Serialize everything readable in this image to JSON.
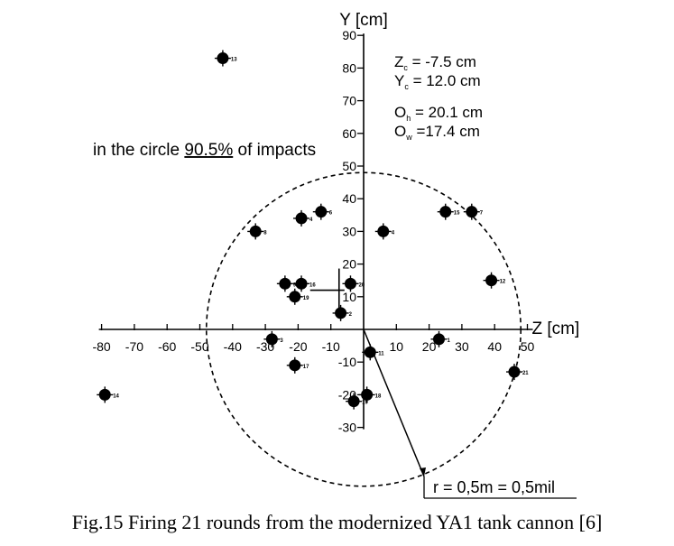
{
  "chart_data": {
    "type": "scatter",
    "y_axis_title": "Y [cm]",
    "x_axis_title": "Z [cm]",
    "x_ticks": [
      -80,
      -70,
      -60,
      -50,
      -40,
      -30,
      -20,
      -10,
      10,
      20,
      30,
      40,
      50
    ],
    "y_ticks": [
      90,
      80,
      70,
      60,
      50,
      40,
      30,
      20,
      10,
      -10,
      -20,
      -30
    ],
    "xlim": [
      -80,
      50
    ],
    "ylim": [
      -30,
      90
    ],
    "circle_label": "in the circle 90.5% of impacts",
    "circle_label_parts": {
      "before": "in the circle ",
      "underlined": "90.5%",
      "after": " of impacts"
    },
    "circle": {
      "center": [
        0,
        0
      ],
      "radius_cm": 48
    },
    "stats": {
      "zc": {
        "var": "Z",
        "sub": "c",
        "text": " = -7.5 cm"
      },
      "yc": {
        "var": "Y",
        "sub": "c",
        "text": " = 12.0 cm"
      },
      "oh": {
        "var": "O",
        "sub": "h",
        "text": " = 20.1 cm"
      },
      "ow": {
        "var": "O",
        "sub": "w",
        "text": " =17.4 cm"
      }
    },
    "center_of_impact": [
      -7.5,
      12.0
    ],
    "radius_note": "r = 0,5m = 0,5mil",
    "points": [
      {
        "x": -43,
        "y": 83,
        "label": "13"
      },
      {
        "x": -33,
        "y": 30,
        "label": "8"
      },
      {
        "x": -24,
        "y": 14,
        "label": "9"
      },
      {
        "x": -19,
        "y": 14,
        "label": "16"
      },
      {
        "x": -21,
        "y": 10,
        "label": "19"
      },
      {
        "x": -19,
        "y": 34,
        "label": "4"
      },
      {
        "x": -13,
        "y": 36,
        "label": "6"
      },
      {
        "x": -4,
        "y": 14,
        "label": "20"
      },
      {
        "x": -7,
        "y": 5,
        "label": "2"
      },
      {
        "x": 6,
        "y": 30,
        "label": "4"
      },
      {
        "x": 25,
        "y": 36,
        "label": "15"
      },
      {
        "x": 33,
        "y": 36,
        "label": "7"
      },
      {
        "x": 39,
        "y": 15,
        "label": "12"
      },
      {
        "x": 23,
        "y": -3,
        "label": "1"
      },
      {
        "x": -28,
        "y": -3,
        "label": "3"
      },
      {
        "x": -21,
        "y": -11,
        "label": "17"
      },
      {
        "x": 2,
        "y": -7,
        "label": "11"
      },
      {
        "x": -79,
        "y": -20,
        "label": "14"
      },
      {
        "x": 1,
        "y": -20,
        "label": "18"
      },
      {
        "x": -3,
        "y": -22,
        "label": "19"
      },
      {
        "x": 46,
        "y": -13,
        "label": "21"
      }
    ]
  },
  "caption": "Fig.15 Firing 21 rounds from the modernized YA1 tank cannon [6]"
}
